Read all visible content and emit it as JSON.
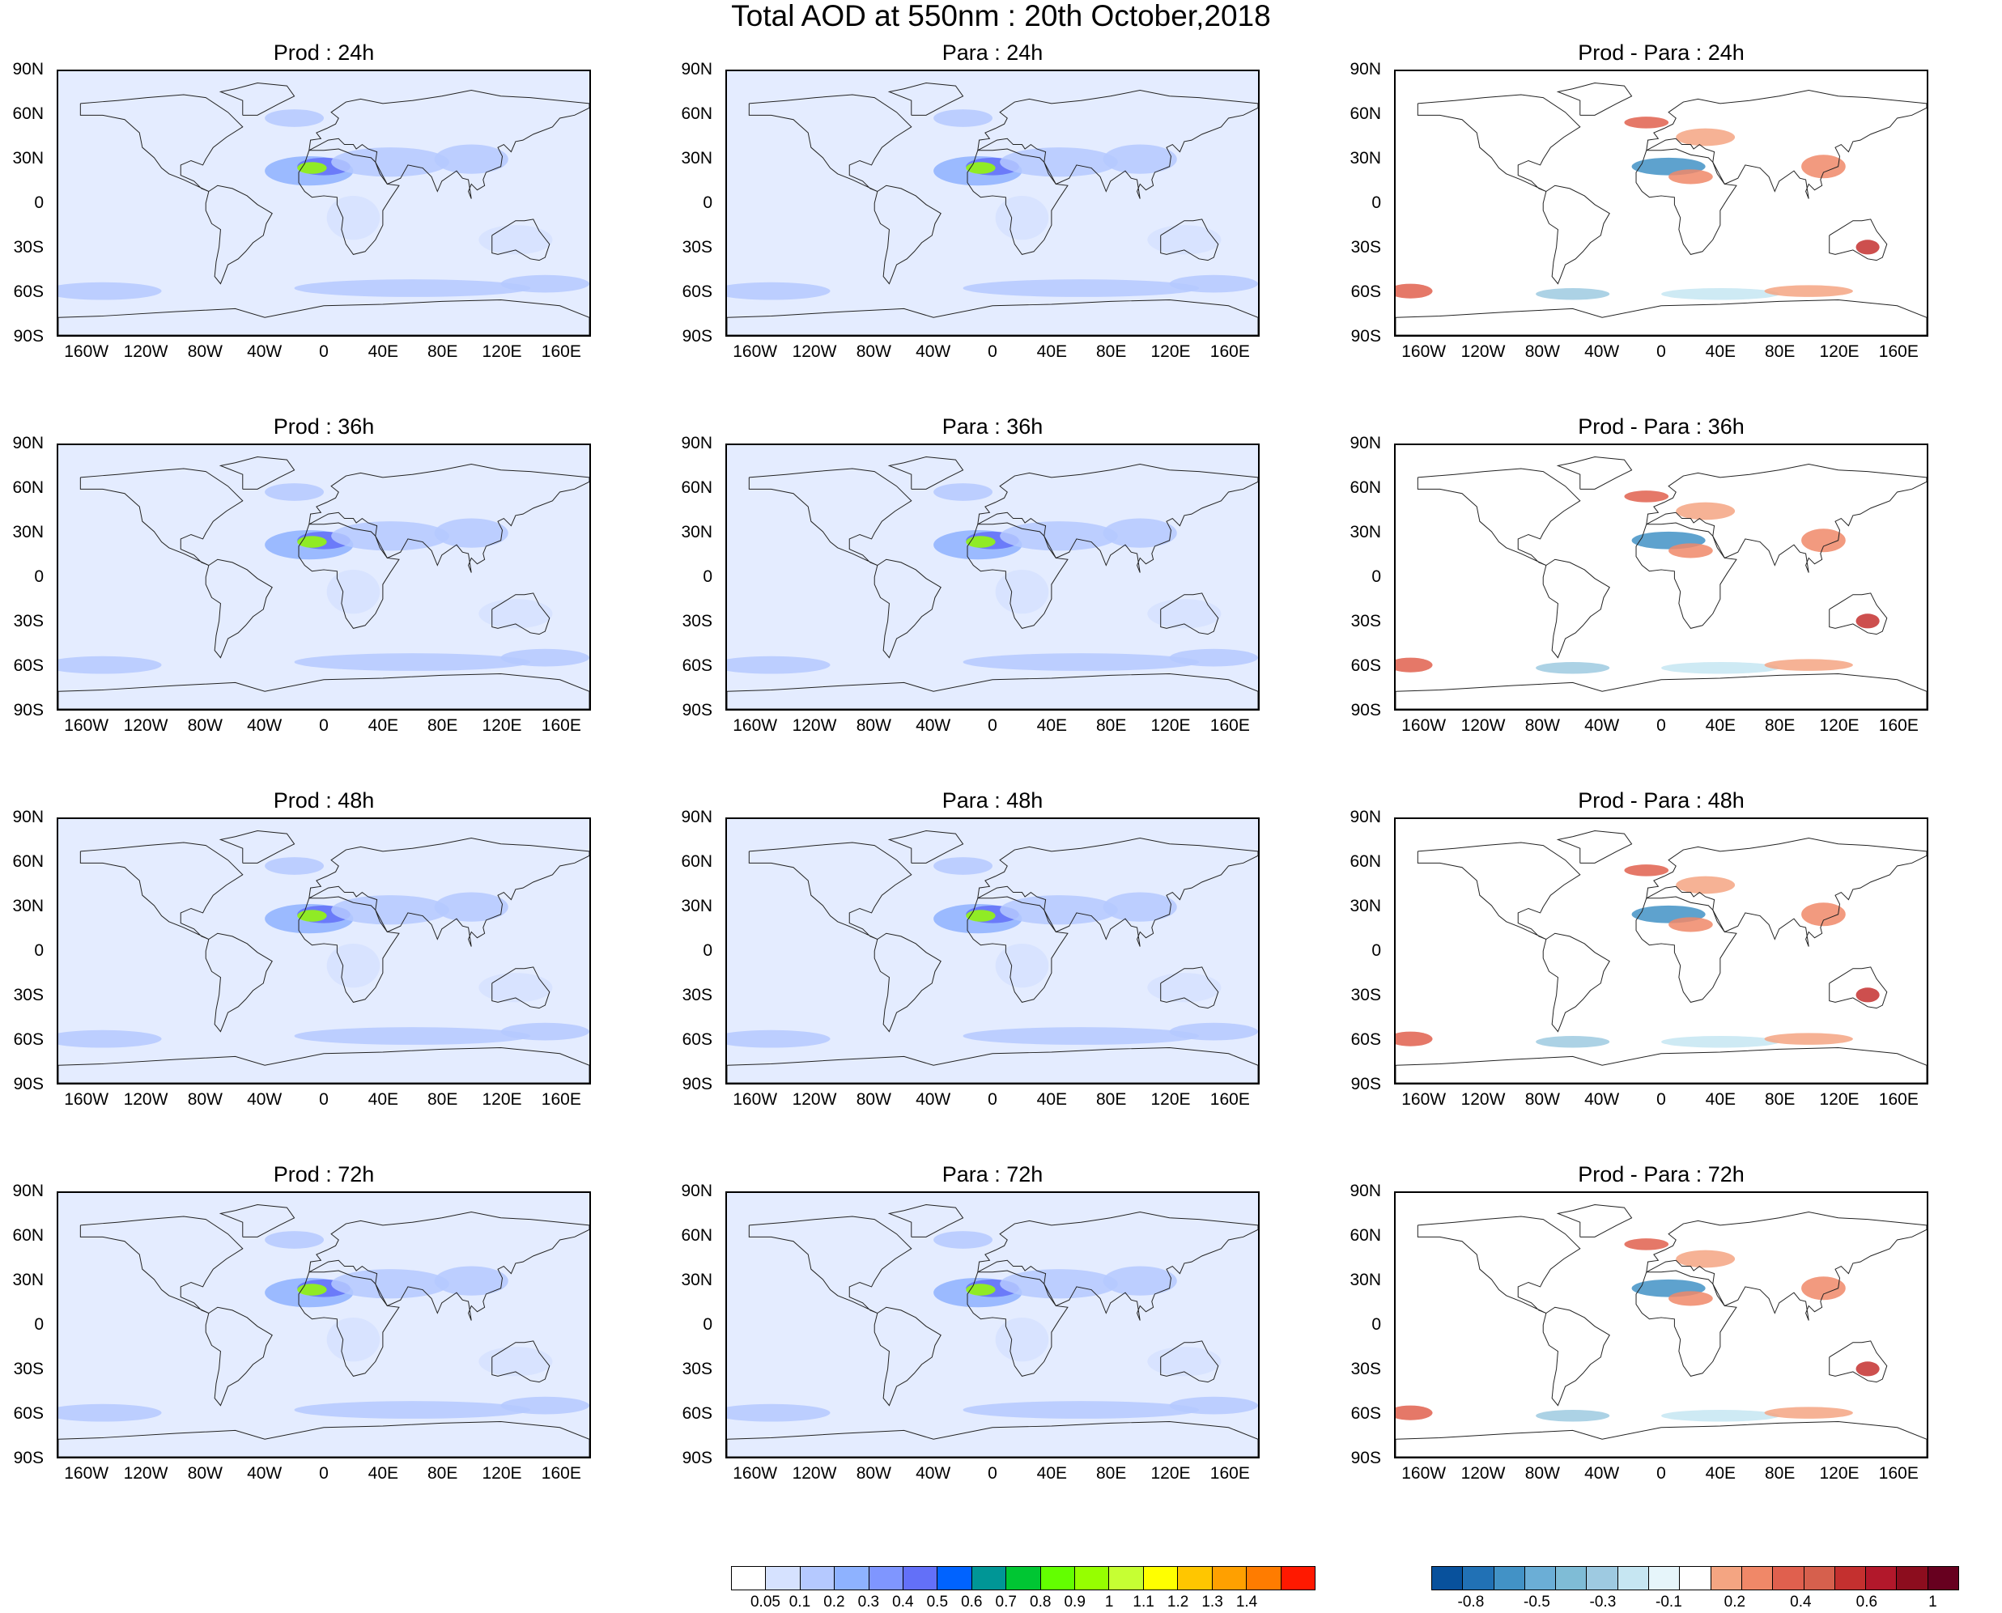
{
  "title": "Total AOD at 550nm : 20th October,2018",
  "axes": {
    "lat_labels": [
      "90N",
      "60N",
      "30N",
      "0",
      "30S",
      "60S",
      "90S"
    ],
    "lon_labels": [
      "160W",
      "120W",
      "80W",
      "40W",
      "0",
      "40E",
      "80E",
      "120E",
      "160E"
    ],
    "lon_values": [
      -160,
      -120,
      -80,
      -40,
      0,
      40,
      80,
      120,
      160
    ]
  },
  "panels": [
    {
      "title": "Prod : 24h",
      "kind": "aod"
    },
    {
      "title": "Para : 24h",
      "kind": "aod"
    },
    {
      "title": "Prod - Para : 24h",
      "kind": "diff"
    },
    {
      "title": "Prod : 36h",
      "kind": "aod"
    },
    {
      "title": "Para : 36h",
      "kind": "aod"
    },
    {
      "title": "Prod - Para : 36h",
      "kind": "diff"
    },
    {
      "title": "Prod : 48h",
      "kind": "aod"
    },
    {
      "title": "Para : 48h",
      "kind": "aod"
    },
    {
      "title": "Prod - Para : 48h",
      "kind": "diff"
    },
    {
      "title": "Prod : 72h",
      "kind": "aod"
    },
    {
      "title": "Para : 72h",
      "kind": "aod"
    },
    {
      "title": "Prod - Para : 72h",
      "kind": "diff"
    }
  ],
  "aod_colorbar": {
    "colors": [
      "#ffffff",
      "#d6e2ff",
      "#b5c9ff",
      "#8eb2ff",
      "#7f96ff",
      "#6370f8",
      "#0063ff",
      "#009696",
      "#00c633",
      "#63ff00",
      "#96ff00",
      "#c6ff33",
      "#ffff00",
      "#ffc600",
      "#ffa000",
      "#ff7c00",
      "#ff1900"
    ],
    "labels": [
      "0.05",
      "0.1",
      "0.2",
      "0.3",
      "0.4",
      "0.5",
      "0.6",
      "0.7",
      "0.8",
      "0.9",
      "1",
      "1.1",
      "1.2",
      "1.3",
      "1.4"
    ]
  },
  "diff_colorbar": {
    "colors": [
      "#08519c",
      "#2171b5",
      "#4292c6",
      "#6baed6",
      "#7fbcd6",
      "#9ecae1",
      "#c6e6f2",
      "#e6f5fa",
      "#ffffff",
      "#f4a582",
      "#f08868",
      "#e0604e",
      "#d6604d",
      "#c4302f",
      "#b2182b",
      "#8c0d1e",
      "#67001f"
    ],
    "labels": [
      "-0.8",
      "-0.5",
      "-0.3",
      "-0.1",
      "0.2",
      "0.4",
      "0.6",
      "1"
    ]
  }
}
